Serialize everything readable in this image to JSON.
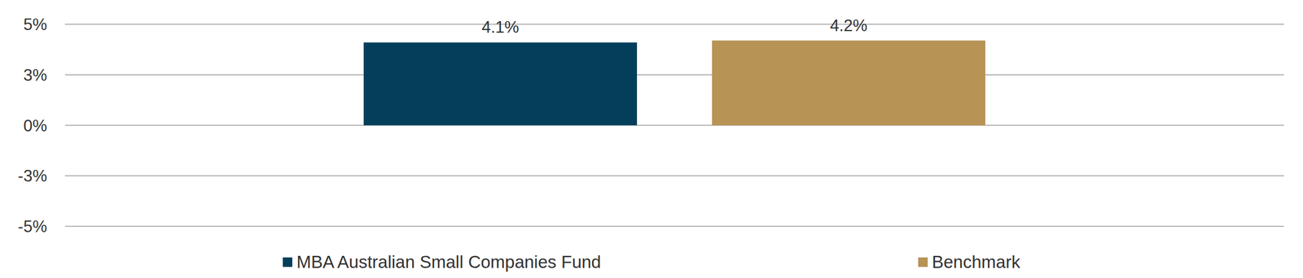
{
  "chart_data": {
    "type": "bar",
    "categories": [
      null
    ],
    "series": [
      {
        "name": "MBA Australian Small Companies Fund",
        "color": "#033f5a",
        "values": [
          4.1
        ],
        "value_labels": [
          "4.1%"
        ]
      },
      {
        "name": "Benchmark",
        "color": "#b79356",
        "values": [
          4.2
        ],
        "value_labels": [
          "4.2%"
        ]
      }
    ],
    "ylim": [
      -5,
      5
    ],
    "yticks": [
      {
        "value": 5,
        "label": "5%"
      },
      {
        "value": 2.5,
        "label": "3%"
      },
      {
        "value": 0,
        "label": "0%"
      },
      {
        "value": -2.5,
        "label": "-3%"
      },
      {
        "value": -5,
        "label": "-5%"
      }
    ],
    "grid": true,
    "data_labels": true,
    "tick_labels": "y",
    "legend": "bottom"
  }
}
